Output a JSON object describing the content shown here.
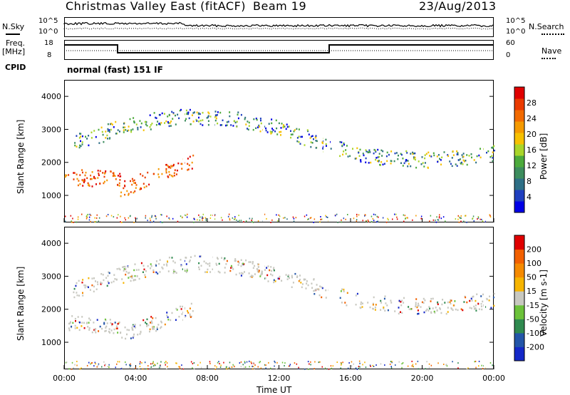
{
  "header": {
    "title": "Christmas Valley East (fitACF)",
    "beam": "Beam 19",
    "date": "23/Aug/2013",
    "mode": "normal (fast) 151 IF"
  },
  "left_labels": {
    "nsky": "N.Sky",
    "freq": "Freq.",
    "freq_unit": "[MHz]",
    "cpid": "CPID"
  },
  "right_labels": {
    "nsearch": "N.Search",
    "nave": "Nave"
  },
  "noise_axis": {
    "left_ticks": [
      "10^5",
      "10^0"
    ],
    "right_ticks": [
      "10^5",
      "10^0"
    ]
  },
  "freq_axis": {
    "left_ticks": [
      "18",
      "8"
    ],
    "right_ticks": [
      "60",
      "0"
    ]
  },
  "chart_data": [
    {
      "type": "heatmap",
      "name": "Power",
      "ylabel": "Slant Range [km]",
      "yticks": [
        1000,
        2000,
        3000,
        4000
      ],
      "ylim": [
        180,
        4500
      ],
      "colorbar": {
        "label": "Power [dB]",
        "ticks": [
          "28",
          "24",
          "20",
          "16",
          "12",
          "8",
          "4"
        ],
        "colors": [
          "#0000e6",
          "#1f3fbf",
          "#2e6f86",
          "#3d8d5e",
          "#4caa3c",
          "#a9d52a",
          "#f6c000",
          "#f59a00",
          "#f26a00",
          "#ea3a00",
          "#e00000"
        ]
      }
    },
    {
      "type": "heatmap",
      "name": "Velocity",
      "ylabel": "Slant Range [km]",
      "yticks": [
        1000,
        2000,
        3000,
        4000
      ],
      "ylim": [
        180,
        4500
      ],
      "colorbar": {
        "label": "Velocity [m s-1]",
        "ticks": [
          "200",
          "100",
          "50",
          "15",
          "-15",
          "-50",
          "-100",
          "-200"
        ],
        "colors": [
          "#1428c8",
          "#2355a8",
          "#2f8a4f",
          "#6cc23a",
          "#c8c8c0",
          "#f6b400",
          "#f58a00",
          "#f26000",
          "#e00000"
        ]
      }
    }
  ],
  "xaxis": {
    "label": "Time UT",
    "ticks": [
      "00:00",
      "04:00",
      "08:00",
      "12:00",
      "16:00",
      "20:00",
      "00:00"
    ]
  }
}
